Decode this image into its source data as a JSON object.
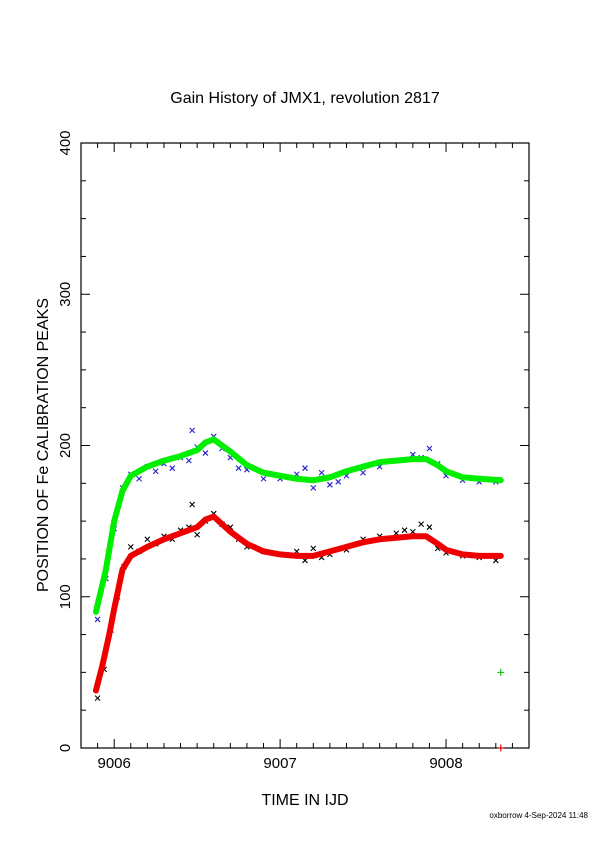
{
  "chart_data": {
    "type": "scatter",
    "title": "Gain History of JMX1, revolution 2817",
    "xlabel": "TIME IN IJD",
    "ylabel": "POSITION OF Fe CALIBRATION PEAKS",
    "xlim": [
      9005.8,
      9008.5
    ],
    "ylim": [
      0,
      400
    ],
    "xticks": [
      9006,
      9007,
      9008
    ],
    "yticks": [
      0,
      100,
      200,
      300,
      400
    ],
    "footer": "oxborrow  4-Sep-2024 11:48",
    "grid": false,
    "colors": {
      "upper_points": "#2222cc",
      "upper_fit": "#00ee00",
      "lower_points": "#000000",
      "lower_fit": "#ee0000"
    },
    "series": [
      {
        "role": "upper-fit",
        "color": "#00ee00",
        "x": [
          9005.89,
          9005.95,
          9006.0,
          9006.05,
          9006.1,
          9006.2,
          9006.3,
          9006.4,
          9006.5,
          9006.55,
          9006.6,
          9006.7,
          9006.8,
          9006.9,
          9007.0,
          9007.1,
          9007.2,
          9007.3,
          9007.4,
          9007.5,
          9007.6,
          9007.7,
          9007.8,
          9007.88,
          9007.95,
          9008.0,
          9008.1,
          9008.2,
          9008.33
        ],
        "y": [
          90,
          118,
          150,
          170,
          180,
          186,
          190,
          193,
          197,
          202,
          204,
          196,
          187,
          182,
          180,
          178,
          177,
          179,
          183,
          186,
          189,
          190,
          191,
          191,
          187,
          183,
          179,
          178,
          177
        ]
      },
      {
        "role": "lower-fit",
        "color": "#ee0000",
        "x": [
          9005.89,
          9005.93,
          9005.97,
          9006.0,
          9006.05,
          9006.1,
          9006.2,
          9006.3,
          9006.4,
          9006.5,
          9006.55,
          9006.6,
          9006.7,
          9006.8,
          9006.9,
          9007.0,
          9007.1,
          9007.2,
          9007.3,
          9007.4,
          9007.5,
          9007.6,
          9007.7,
          9007.8,
          9007.88,
          9007.95,
          9008.0,
          9008.1,
          9008.2,
          9008.33
        ],
        "y": [
          38,
          55,
          75,
          92,
          118,
          127,
          133,
          138,
          142,
          146,
          151,
          153,
          143,
          135,
          130,
          128,
          127,
          127,
          130,
          133,
          136,
          138,
          139,
          140,
          140,
          135,
          131,
          128,
          127,
          127
        ]
      },
      {
        "role": "upper-points",
        "color": "#2222cc",
        "x": [
          9005.9,
          9005.95,
          9006.0,
          9006.05,
          9006.1,
          9006.15,
          9006.2,
          9006.25,
          9006.3,
          9006.35,
          9006.4,
          9006.45,
          9006.47,
          9006.5,
          9006.55,
          9006.6,
          9006.65,
          9006.7,
          9006.75,
          9006.8,
          9006.9,
          9007.0,
          9007.1,
          9007.15,
          9007.2,
          9007.25,
          9007.3,
          9007.35,
          9007.4,
          9007.5,
          9007.6,
          9007.7,
          9007.8,
          9007.85,
          9007.9,
          9007.95,
          9008.0,
          9008.1,
          9008.2,
          9008.3
        ],
        "y": [
          85,
          112,
          145,
          172,
          181,
          178,
          186,
          183,
          188,
          185,
          192,
          190,
          210,
          199,
          195,
          206,
          198,
          192,
          185,
          184,
          178,
          178,
          181,
          185,
          172,
          182,
          174,
          176,
          180,
          182,
          186,
          190,
          194,
          192,
          198,
          188,
          180,
          177,
          176,
          176
        ]
      },
      {
        "role": "lower-points",
        "color": "#000000",
        "x": [
          9005.9,
          9005.94,
          9005.98,
          9006.02,
          9006.06,
          9006.1,
          9006.15,
          9006.2,
          9006.25,
          9006.3,
          9006.35,
          9006.4,
          9006.45,
          9006.47,
          9006.5,
          9006.55,
          9006.6,
          9006.65,
          9006.7,
          9006.75,
          9006.8,
          9006.9,
          9007.0,
          9007.1,
          9007.15,
          9007.2,
          9007.25,
          9007.3,
          9007.4,
          9007.5,
          9007.6,
          9007.7,
          9007.75,
          9007.8,
          9007.85,
          9007.9,
          9007.95,
          9008.0,
          9008.1,
          9008.2,
          9008.3
        ],
        "y": [
          33,
          52,
          78,
          100,
          120,
          133,
          130,
          138,
          135,
          140,
          138,
          144,
          146,
          161,
          141,
          150,
          155,
          148,
          146,
          138,
          133,
          130,
          128,
          130,
          124,
          132,
          126,
          128,
          131,
          138,
          140,
          142,
          144,
          143,
          148,
          146,
          132,
          129,
          127,
          126,
          124
        ]
      },
      {
        "role": "outlier-green",
        "color": "#00bb00",
        "x": [
          9008.33
        ],
        "y": [
          50
        ]
      },
      {
        "role": "outlier-red",
        "color": "#ee0000",
        "x": [
          9008.33
        ],
        "y": [
          0
        ]
      }
    ]
  }
}
